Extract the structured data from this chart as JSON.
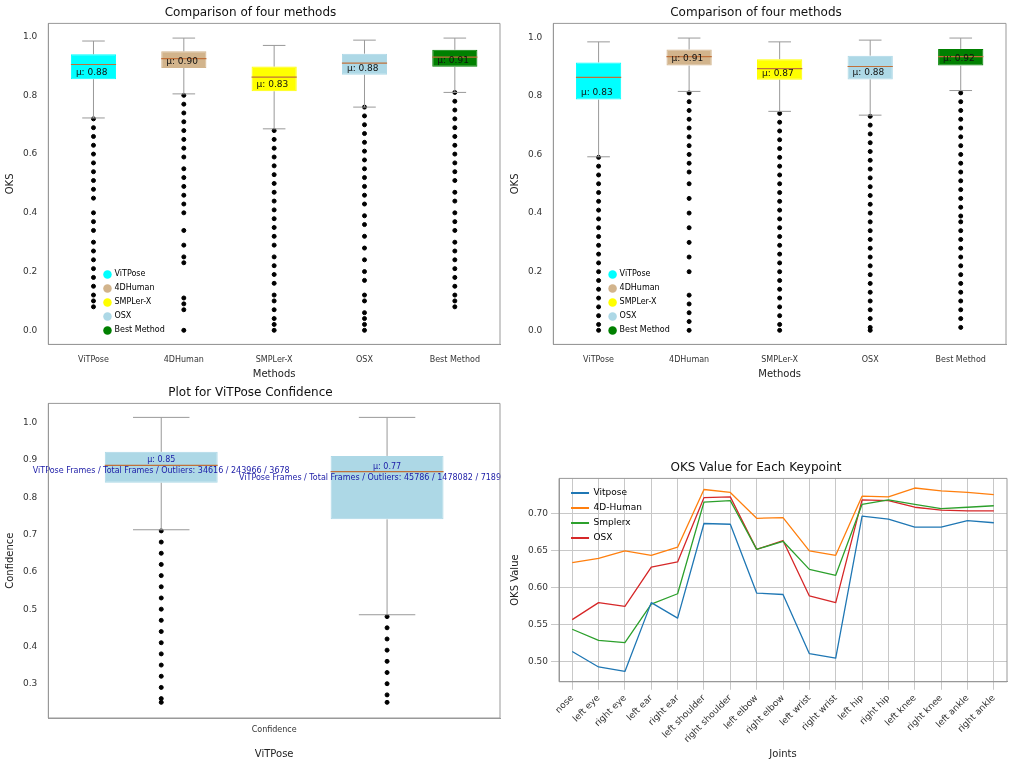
{
  "chart_data": [
    {
      "type": "box",
      "title": "Comparison of four methods",
      "xlabel": "Methods",
      "ylabel": "OKS",
      "categories": [
        "ViTPose",
        "4DHuman",
        "SMPLer-X",
        "OSX",
        "Best Method"
      ],
      "legend": "bottom left",
      "ylim": [
        -0.048,
        1.045
      ],
      "yticks": [
        {
          "value": 0,
          "label": "0.0"
        },
        0.2,
        0.4,
        0.6,
        0.8,
        {
          "value": 1,
          "label": "1.0"
        }
      ],
      "series": [
        {
          "name": "ViTPose",
          "color": "#00ffff",
          "boxes": [
            {
              "low": 0.723,
              "q1": 0.855,
              "median": 0.905,
              "q3": 0.94,
              "high": 0.985,
              "outliers": [
                0.72,
                0.69,
                0.66,
                0.63,
                0.6,
                0.57,
                0.54,
                0.51,
                0.48,
                0.45,
                0.4,
                0.37,
                0.34,
                0.3,
                0.27,
                0.24,
                0.21,
                0.18,
                0.15,
                0.12,
                0.1,
                0.08
              ]
            },
            null,
            null,
            null,
            null
          ]
        },
        {
          "name": "4DHuman",
          "color": "#d2b48c",
          "boxes": [
            null,
            {
              "low": 0.805,
              "q1": 0.893,
              "median": 0.925,
              "q3": 0.95,
              "high": 0.995,
              "outliers": [
                0.8,
                0.77,
                0.74,
                0.71,
                0.68,
                0.65,
                0.62,
                0.59,
                0.55,
                0.52,
                0.49,
                0.46,
                0.43,
                0.4,
                0.34,
                0.29,
                0.25,
                0.23,
                0.11,
                0.09,
                0.07,
                0
              ]
            },
            null,
            null,
            null
          ]
        },
        {
          "name": "SMPLer-X",
          "color": "#ffff00",
          "boxes": [
            null,
            null,
            {
              "low": 0.686,
              "q1": 0.814,
              "median": 0.862,
              "q3": 0.898,
              "high": 0.97,
              "outliers": [
                0.68,
                0.65,
                0.62,
                0.59,
                0.56,
                0.53,
                0.5,
                0.47,
                0.44,
                0.41,
                0.38,
                0.35,
                0.32,
                0.29,
                0.25,
                0.22,
                0.19,
                0.16,
                0.12,
                0.1,
                0.07,
                0.04,
                0.02,
                0
              ]
            },
            null,
            null
          ]
        },
        {
          "name": "OSX",
          "color": "#add8e6",
          "boxes": [
            null,
            null,
            null,
            {
              "low": 0.76,
              "q1": 0.87,
              "median": 0.91,
              "q3": 0.942,
              "high": 0.988,
              "outliers": [
                0.76,
                0.73,
                0.7,
                0.67,
                0.64,
                0.61,
                0.58,
                0.55,
                0.52,
                0.49,
                0.46,
                0.43,
                0.39,
                0.36,
                0.32,
                0.28,
                0.24,
                0.2,
                0.17,
                0.12,
                0.1,
                0.06,
                0.04,
                0.02,
                0
              ]
            },
            null
          ]
        },
        {
          "name": "Best Method",
          "color": "#008000",
          "boxes": [
            null,
            null,
            null,
            null,
            {
              "low": 0.81,
              "q1": 0.897,
              "median": 0.93,
              "q3": 0.955,
              "high": 0.995,
              "outliers": [
                0.81,
                0.78,
                0.75,
                0.72,
                0.69,
                0.66,
                0.63,
                0.6,
                0.57,
                0.54,
                0.51,
                0.47,
                0.44,
                0.4,
                0.37,
                0.34,
                0.3,
                0.27,
                0.24,
                0.21,
                0.18,
                0.15,
                0.12,
                0.1,
                0.08
              ]
            }
          ]
        }
      ],
      "annotations": [
        "μ: 0.88",
        "μ: 0.90",
        "μ: 0.83",
        "μ: 0.88",
        "μ: 0.91"
      ]
    },
    {
      "type": "box",
      "title": "Comparison of four methods",
      "xlabel": "Methods",
      "ylabel": "OKS",
      "categories": [
        "ViTPose",
        "4DHuman",
        "SMPLer-X",
        "OSX",
        "Best Method"
      ],
      "legend": "bottom left",
      "ylim": [
        -0.048,
        1.047
      ],
      "yticks": [
        {
          "value": 0,
          "label": "0.0"
        },
        0.2,
        0.4,
        0.6,
        0.8,
        {
          "value": 1,
          "label": "1.0"
        }
      ],
      "series": [
        {
          "name": "ViTPose",
          "color": "#00ffff",
          "boxes": [
            {
              "low": 0.592,
              "q1": 0.787,
              "median": 0.863,
              "q3": 0.914,
              "high": 0.984,
              "outliers": [
                0.59,
                0.56,
                0.53,
                0.5,
                0.47,
                0.44,
                0.41,
                0.38,
                0.35,
                0.32,
                0.29,
                0.26,
                0.23,
                0.2,
                0.17,
                0.14,
                0.11,
                0.08,
                0.05,
                0.02,
                0
              ]
            },
            null,
            null,
            null,
            null
          ]
        },
        {
          "name": "4DHuman",
          "color": "#d2b48c",
          "boxes": [
            null,
            {
              "low": 0.815,
              "q1": 0.903,
              "median": 0.934,
              "q3": 0.958,
              "high": 0.997,
              "outliers": [
                0.81,
                0.78,
                0.75,
                0.72,
                0.69,
                0.66,
                0.63,
                0.6,
                0.57,
                0.54,
                0.5,
                0.45,
                0.4,
                0.35,
                0.3,
                0.25,
                0.2,
                0.12,
                0.09,
                0.06,
                0.03,
                0
              ]
            },
            null,
            null,
            null
          ]
        },
        {
          "name": "SMPLer-X",
          "color": "#ffff00",
          "boxes": [
            null,
            null,
            {
              "low": 0.747,
              "q1": 0.855,
              "median": 0.893,
              "q3": 0.925,
              "high": 0.984,
              "outliers": [
                0.74,
                0.71,
                0.68,
                0.65,
                0.62,
                0.59,
                0.56,
                0.53,
                0.5,
                0.47,
                0.44,
                0.41,
                0.38,
                0.35,
                0.32,
                0.29,
                0.26,
                0.23,
                0.2,
                0.17,
                0.14,
                0.11,
                0.08,
                0.05,
                0.02,
                0
              ]
            },
            null,
            null
          ]
        },
        {
          "name": "OSX",
          "color": "#add8e6",
          "boxes": [
            null,
            null,
            null,
            {
              "low": 0.734,
              "q1": 0.856,
              "median": 0.9,
              "q3": 0.937,
              "high": 0.99,
              "outliers": [
                0.73,
                0.7,
                0.67,
                0.64,
                0.61,
                0.58,
                0.55,
                0.52,
                0.49,
                0.46,
                0.43,
                0.4,
                0.37,
                0.34,
                0.31,
                0.28,
                0.25,
                0.22,
                0.19,
                0.16,
                0.13,
                0.1,
                0.07,
                0.04,
                0.01,
                0
              ]
            },
            null
          ]
        },
        {
          "name": "Best Method",
          "color": "#008000",
          "boxes": [
            null,
            null,
            null,
            null,
            {
              "low": 0.818,
              "q1": 0.903,
              "median": 0.934,
              "q3": 0.96,
              "high": 0.997,
              "outliers": [
                0.81,
                0.78,
                0.75,
                0.72,
                0.69,
                0.66,
                0.63,
                0.6,
                0.57,
                0.54,
                0.51,
                0.48,
                0.45,
                0.42,
                0.39,
                0.37,
                0.34,
                0.31,
                0.28,
                0.25,
                0.22,
                0.19,
                0.16,
                0.13,
                0.1,
                0.07,
                0.04,
                0.01
              ]
            }
          ]
        }
      ],
      "annotations": [
        "μ: 0.83",
        "μ: 0.91",
        "μ: 0.87",
        "μ: 0.88",
        "μ: 0.92"
      ]
    },
    {
      "type": "box",
      "title": "Plot for ViTPose Confidence",
      "xlabel": "ViTPose",
      "ylabel": "Confidence",
      "categories": [
        null,
        null
      ],
      "colors": [
        "#add8e6",
        "#add8e6"
      ],
      "ylim": [
        0.208,
        1.052
      ],
      "yticks": [
        0.3,
        0.4,
        0.5,
        0.6,
        0.7,
        0.8,
        0.9,
        {
          "value": 1,
          "label": "1.0"
        }
      ],
      "boxes": [
        {
          "low": 0.713,
          "q1": 0.839,
          "median": 0.886,
          "q3": 0.922,
          "high": 1.0145,
          "outliers": [
            0.71,
            0.68,
            0.65,
            0.62,
            0.59,
            0.56,
            0.53,
            0.5,
            0.47,
            0.44,
            0.41,
            0.38,
            0.35,
            0.32,
            0.29,
            0.26,
            0.25
          ]
        },
        {
          "low": 0.485,
          "q1": 0.741,
          "median": 0.869,
          "q3": 0.911,
          "high": 1.0145,
          "outliers": [
            0.48,
            0.45,
            0.42,
            0.39,
            0.36,
            0.33,
            0.3,
            0.27,
            0.25
          ]
        }
      ],
      "annotations": [
        "μ: 0.85",
        "ViTPose Frames / Total Frames / Outliers: 34616 / 243966 / 3678",
        "μ: 0.77",
        "ViTPose Frames / Total Frames / Outliers: 45786 / 1478082 / 7189",
        "Confidence"
      ]
    },
    {
      "type": "line",
      "title": "OKS Value for Each Keypoint",
      "xlabel": "Joints",
      "ylabel": "OKS Value",
      "grid": true,
      "legend": "top left",
      "categories": [
        "nose",
        "left eye",
        "right eye",
        "left ear",
        "right ear",
        "left shoulder",
        "right shoulder",
        "left elbow",
        "right elbow",
        "left wrist",
        "right wrist",
        "left hip",
        "right hip",
        "left knee",
        "right knee",
        "left ankle",
        "right ankle"
      ],
      "ylim": [
        0.473,
        0.748
      ],
      "yticks": [
        {
          "value": 0.5,
          "label": "0.50"
        },
        0.55,
        {
          "value": 0.6,
          "label": "0.60"
        },
        0.65,
        {
          "value": 0.7,
          "label": "0.70"
        }
      ],
      "series": [
        {
          "name": "Vitpose",
          "color": "#1f77b4",
          "values": [
            0.514,
            0.493,
            0.487,
            0.58,
            0.559,
            0.687,
            0.686,
            0.593,
            0.591,
            0.511,
            0.505,
            0.697,
            0.693,
            0.682,
            0.682,
            0.691,
            0.688
          ]
        },
        {
          "name": "4D-Human",
          "color": "#ff7f0e",
          "values": [
            0.634,
            0.64,
            0.65,
            0.644,
            0.655,
            0.733,
            0.729,
            0.694,
            0.695,
            0.65,
            0.644,
            0.724,
            0.723,
            0.735,
            0.731,
            0.729,
            0.726
          ]
        },
        {
          "name": "Smplerx",
          "color": "#2ca02c",
          "values": [
            0.544,
            0.529,
            0.526,
            0.578,
            0.592,
            0.716,
            0.718,
            0.652,
            0.663,
            0.625,
            0.617,
            0.713,
            0.719,
            0.713,
            0.707,
            0.709,
            0.711
          ]
        },
        {
          "name": "OSX",
          "color": "#d62728",
          "values": [
            0.557,
            0.58,
            0.575,
            0.628,
            0.635,
            0.722,
            0.723,
            0.652,
            0.664,
            0.589,
            0.58,
            0.719,
            0.718,
            0.709,
            0.705,
            0.704,
            0.704
          ]
        }
      ]
    }
  ]
}
